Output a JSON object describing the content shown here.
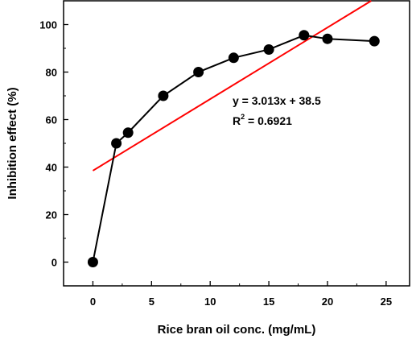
{
  "chart_data": {
    "type": "scatter",
    "title": "",
    "xlabel": "Rice bran oil conc. (mg/mL)",
    "ylabel": "Inhibition effect (%)",
    "xlim": [
      -2.5,
      27
    ],
    "ylim": [
      -10,
      110
    ],
    "xticks": [
      0,
      5,
      10,
      15,
      20,
      25
    ],
    "yticks": [
      0,
      20,
      40,
      60,
      80,
      100
    ],
    "grid": false,
    "legend": "none",
    "series": [
      {
        "type": "line+markers",
        "color": "#000000",
        "x": [
          0,
          2,
          3,
          6,
          9,
          12,
          15,
          18,
          20,
          24
        ],
        "y": [
          0,
          50,
          54.5,
          70,
          80,
          86,
          89.5,
          95.5,
          94,
          93
        ]
      },
      {
        "type": "fit-line",
        "color": "#ff0000",
        "slope": 3.013,
        "intercept": 38.5,
        "x_range": [
          0,
          24.1
        ]
      }
    ],
    "annotations": {
      "equation": "y = 3.013x + 38.5",
      "r2_prefix": "R",
      "r2_sup": "2",
      "r2_value": " = 0.6921"
    }
  }
}
